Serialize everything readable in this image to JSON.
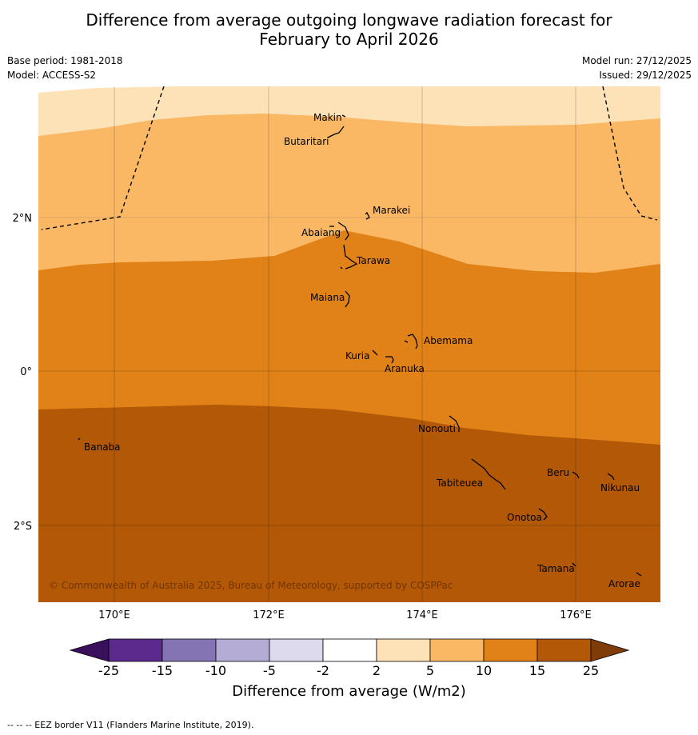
{
  "title_line1": "Difference from average outgoing longwave radiation forecast for",
  "title_line2": "February to April 2026",
  "base_period": "Base period: 1981-2018",
  "model": "Model: ACCESS-S2",
  "model_run": "Model run: 27/12/2025",
  "issued": "Issued: 29/12/2025",
  "copyright": "© Commonwealth of Australia 2025, Bureau of Meteorology, supported by COSPPac",
  "lon_labels": [
    "170°E",
    "172°E",
    "174°E",
    "176°E"
  ],
  "lat_labels": [
    "2°N",
    "0°",
    "2°S"
  ],
  "places": [
    "Makin",
    "Butaritari",
    "Marakei",
    "Abaiang",
    "Tarawa",
    "Maiana",
    "Abemama",
    "Kuria",
    "Aranuka",
    "Banaba",
    "Nonouti",
    "Beru",
    "Tabiteuea",
    "Nikunau",
    "Onotoa",
    "Tamana",
    "Arorae"
  ],
  "colorbar": {
    "labels": [
      "-25",
      "-15",
      "-10",
      "-5",
      "-2",
      "2",
      "5",
      "10",
      "15",
      "25"
    ],
    "colors": [
      "#3a0f5c",
      "#5b2a8c",
      "#8474b3",
      "#b4acd5",
      "#dcdaec",
      "#ffffff",
      "#fde2b8",
      "#fab864",
      "#e08217",
      "#b35806",
      "#7f3b08"
    ],
    "title": "Difference from average (W/m2)"
  },
  "footnote": "--  --  -- EEZ border V11 (Flanders Marine Institute, 2019)."
}
